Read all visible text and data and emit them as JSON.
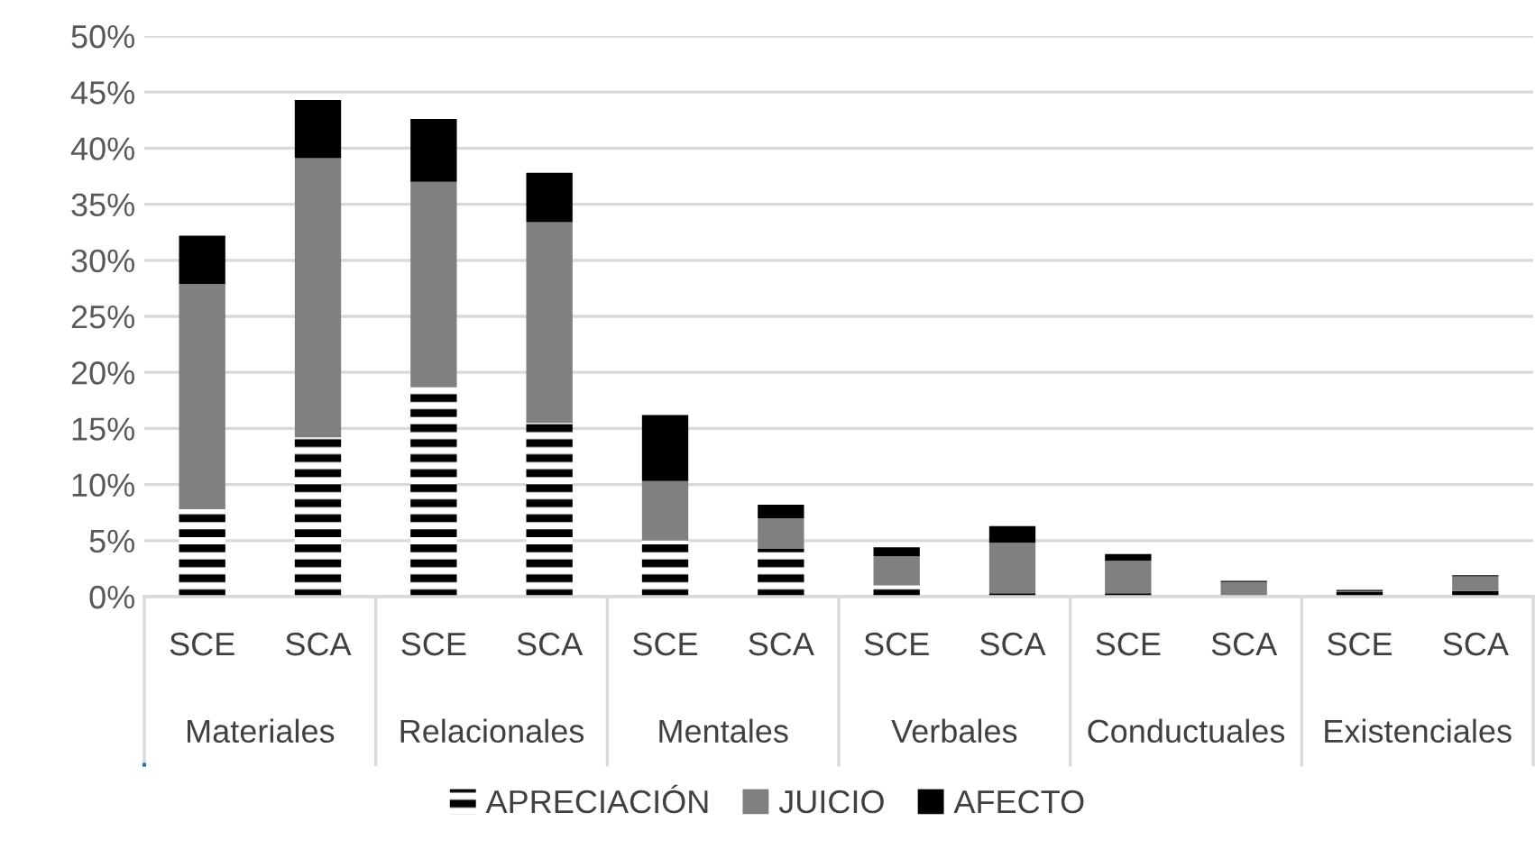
{
  "chart_data": {
    "type": "bar",
    "stacked": true,
    "categories": [
      "SCE",
      "SCA",
      "SCE",
      "SCA",
      "SCE",
      "SCA",
      "SCE",
      "SCA",
      "SCE",
      "SCA",
      "SCE",
      "SCA"
    ],
    "annotations": [
      "Materiales",
      "Relacionales",
      "Mentales",
      "Verbales",
      "Conductuales",
      "Existenciales"
    ],
    "series": [
      {
        "name": "APRECIACIÓN",
        "color": "#000000",
        "values": [
          7.8,
          14.2,
          18.7,
          15.5,
          5.0,
          4.3,
          1.0,
          0.3,
          0.3,
          0,
          0.4,
          0.5
        ]
      },
      {
        "name": "JUICIO",
        "color": "#808080",
        "values": [
          20.1,
          24.9,
          18.3,
          17.9,
          5.3,
          2.7,
          2.6,
          4.5,
          2.9,
          1.3,
          0.1,
          1.3
        ]
      },
      {
        "name": "AFECTO",
        "color": "#000000",
        "values": [
          4.3,
          5.2,
          5.6,
          4.4,
          5.9,
          1.2,
          0.8,
          1.5,
          0.6,
          0.1,
          0.1,
          0.1
        ]
      }
    ],
    "ylim": [
      0,
      50
    ],
    "yticks": [
      {
        "value": 0,
        "label": "0%"
      },
      {
        "value": 5,
        "label": "5%"
      },
      {
        "value": 10,
        "label": "10%"
      },
      {
        "value": 15,
        "label": "15%"
      },
      {
        "value": 20,
        "label": "20%"
      },
      {
        "value": 25,
        "label": "25%"
      },
      {
        "value": 30,
        "label": "30%"
      },
      {
        "value": 35,
        "label": "35%"
      },
      {
        "value": 40,
        "label": "40%"
      },
      {
        "value": 45,
        "label": "45%"
      },
      {
        "value": 50,
        "label": "50%"
      }
    ],
    "grid": "y",
    "legend": "bottom"
  }
}
